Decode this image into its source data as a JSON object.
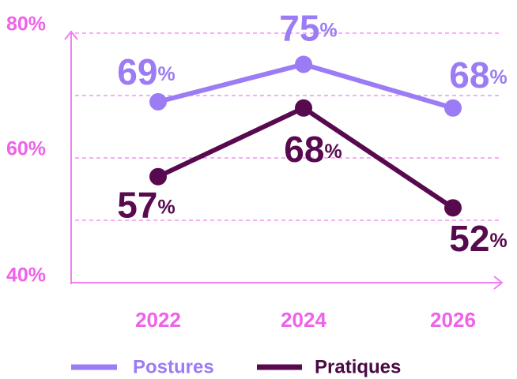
{
  "chart_data": {
    "type": "line",
    "categories": [
      "2022",
      "2024",
      "2026"
    ],
    "series": [
      {
        "name": "Postures",
        "color": "#9b7cf4",
        "values": [
          69,
          75,
          68
        ],
        "value_labels": [
          "69%",
          "75%",
          "68%"
        ]
      },
      {
        "name": "Pratiques",
        "color": "#580a4f",
        "values": [
          57,
          68,
          52
        ],
        "value_labels": [
          "57%",
          "68%",
          "52%"
        ]
      }
    ],
    "ylim": [
      40,
      80
    ],
    "yticks": [
      {
        "value": 40,
        "label": "40%"
      },
      {
        "value": 60,
        "label": "60%"
      },
      {
        "value": 80,
        "label": "80%"
      }
    ],
    "minor_yticks": [
      50,
      70
    ],
    "grid": true,
    "legend": "bottom"
  }
}
